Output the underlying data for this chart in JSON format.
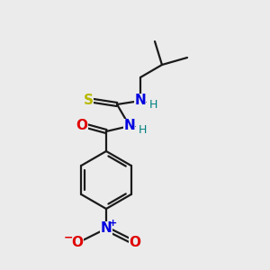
{
  "bg_color": "#ebebeb",
  "bond_color": "#1a1a1a",
  "atom_colors": {
    "S": "#b8b800",
    "N": "#0000e0",
    "O": "#e00000",
    "H": "#008080"
  },
  "figsize": [
    3.0,
    3.0
  ],
  "dpi": 100,
  "lw": 1.6
}
